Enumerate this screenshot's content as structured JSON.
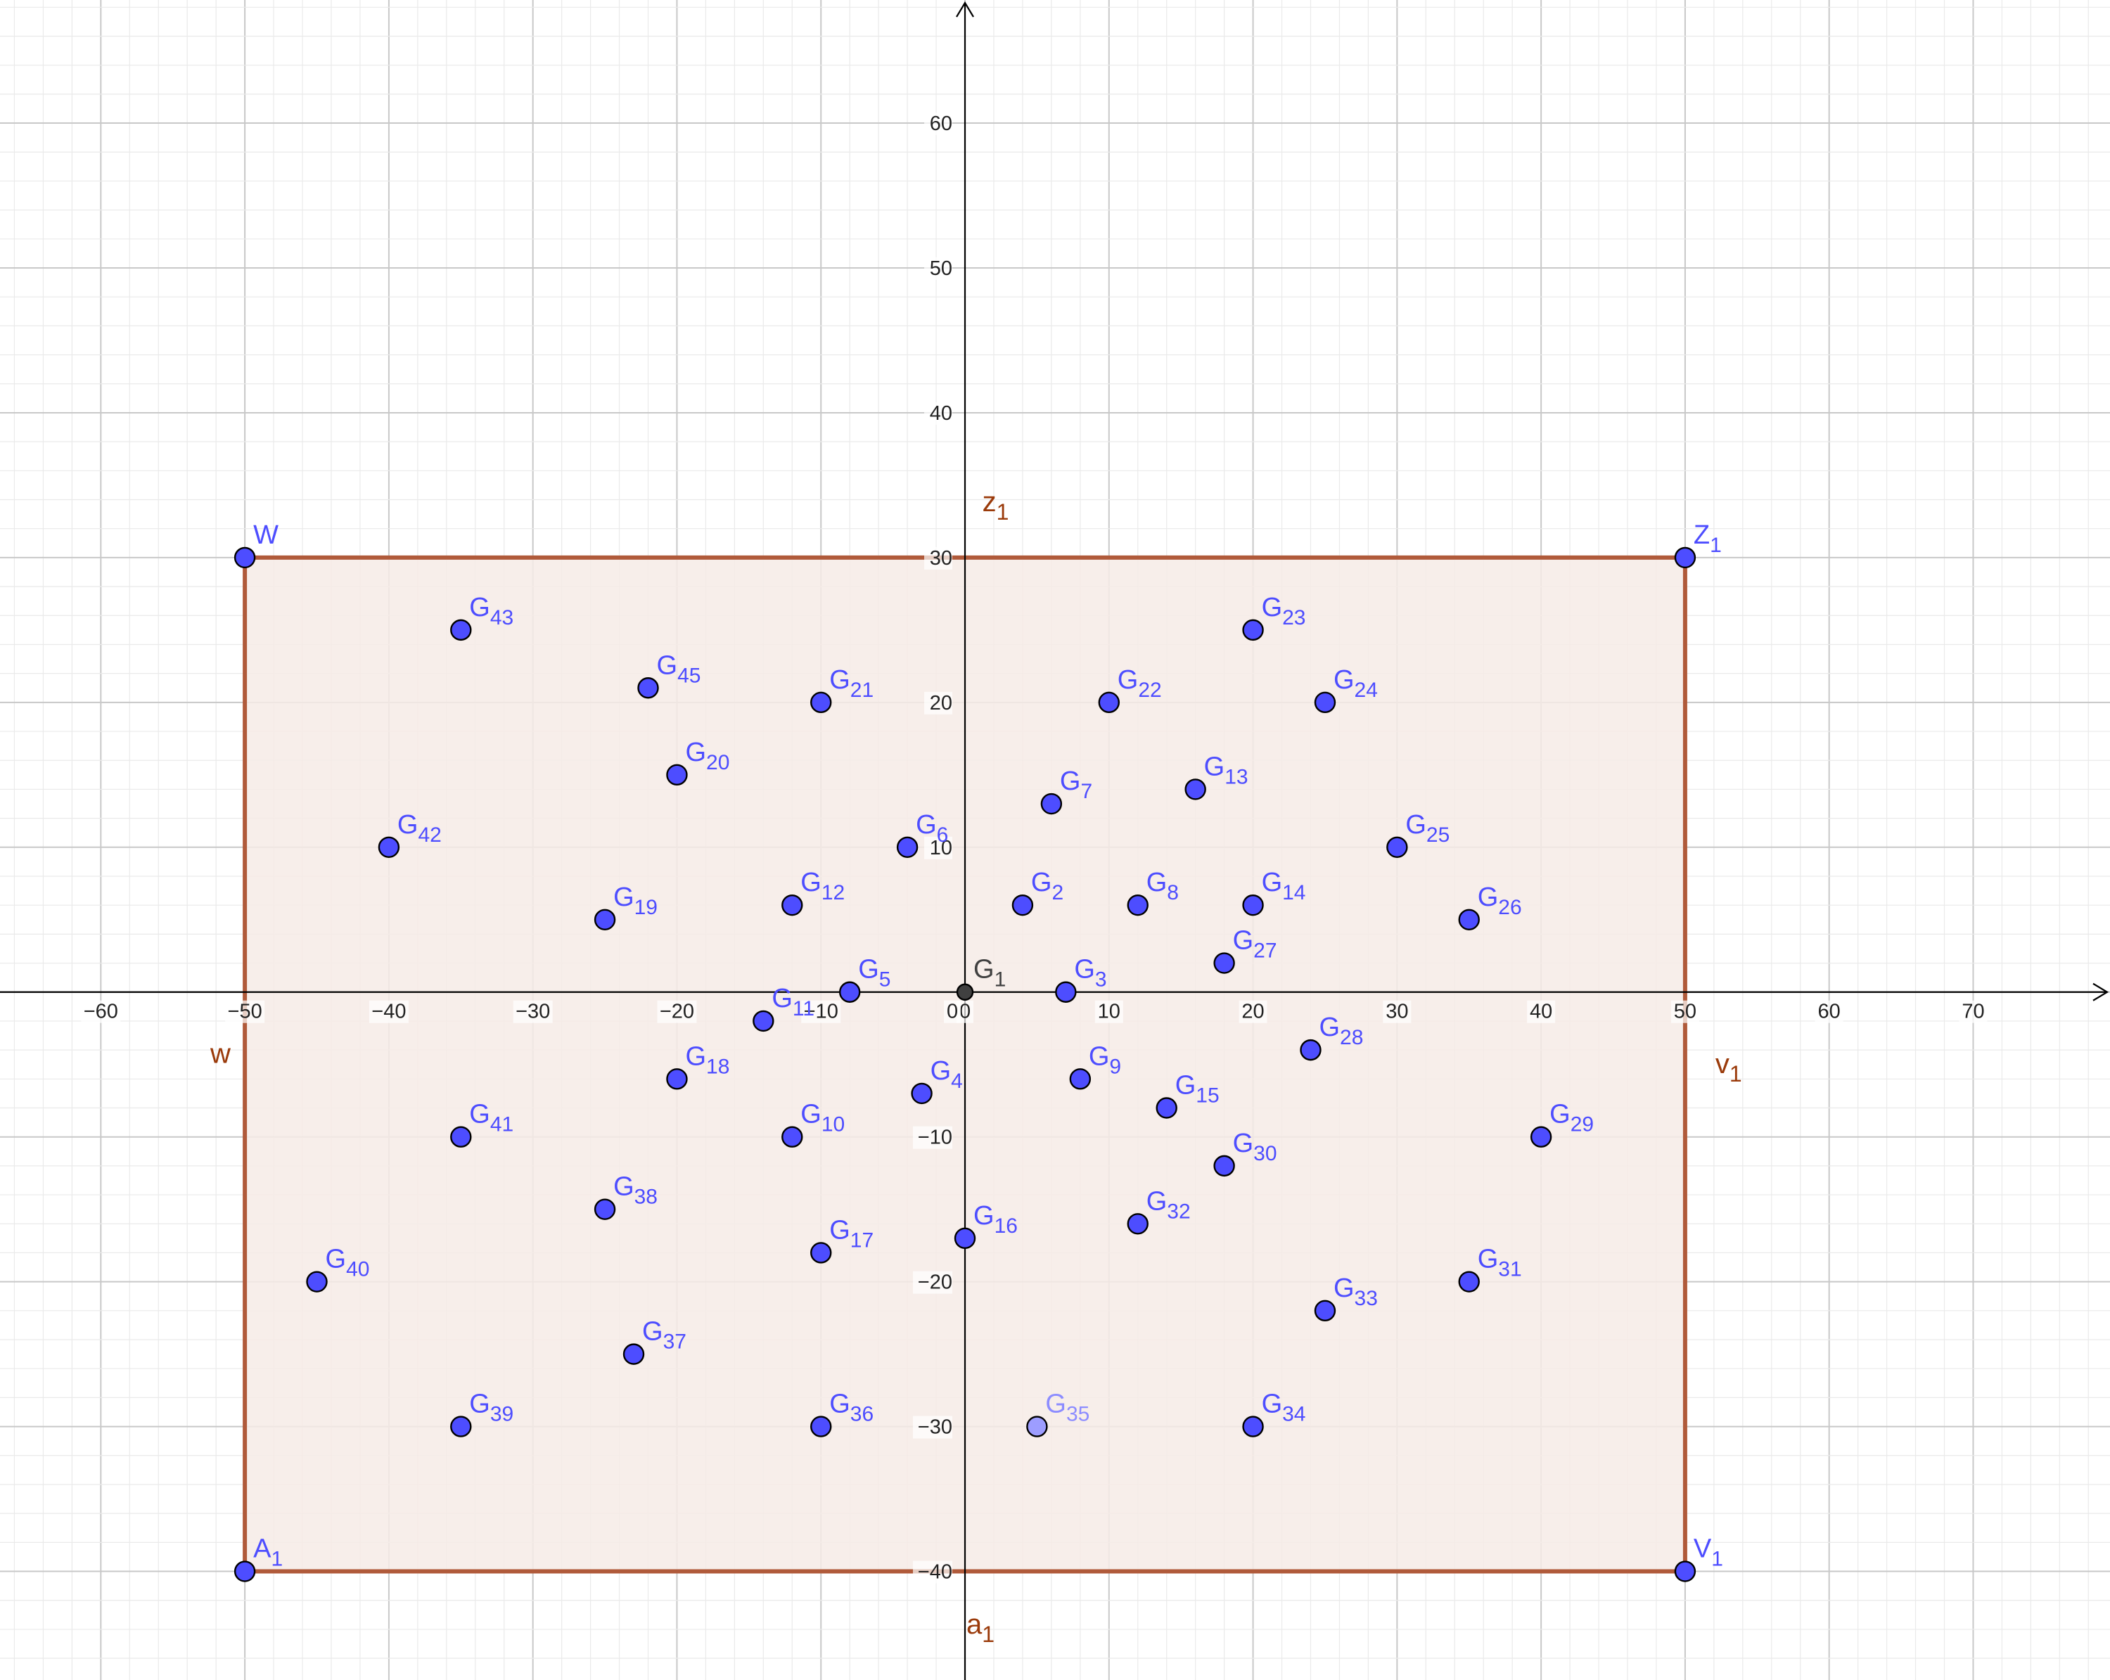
{
  "chart_data": {
    "type": "scatter",
    "x_range": [
      -67,
      79.5
    ],
    "y_range": [
      -47.5,
      68.5
    ],
    "grid": true,
    "x_ticks": [
      -60,
      -50,
      -40,
      -30,
      -20,
      -10,
      0,
      10,
      20,
      30,
      40,
      50,
      60,
      70
    ],
    "y_ticks": [
      -40,
      -30,
      -20,
      -10,
      10,
      20,
      30,
      40,
      50,
      60
    ],
    "colors": {
      "point_fill": "#4d4dff",
      "point_fill_light": "#9d9dff",
      "point_origin": "#404040",
      "label": "#4d4dff",
      "label_light": "#8c8cff",
      "label_origin": "#404040",
      "polygon_fill": "#f6ebe6",
      "polygon_edge": "#b05a3a",
      "segment_label": "#9a3a0a",
      "axis": "#000000",
      "grid_major": "#c8c8c8",
      "grid_minor": "#eaeaea"
    },
    "polygon": {
      "vertices": [
        "W",
        "Z_1",
        "V_1",
        "A_1"
      ],
      "edges": [
        {
          "name": "z",
          "sub": "1",
          "from": [
            -50,
            30
          ],
          "to": [
            50,
            30
          ],
          "label_at": [
            1.2,
            33.2
          ]
        },
        {
          "name": "v",
          "sub": "1",
          "from": [
            50,
            30
          ],
          "to": [
            50,
            -40
          ],
          "label_at": [
            52.1,
            -5.6
          ]
        },
        {
          "name": "a",
          "sub": "1",
          "from": [
            50,
            -40
          ],
          "to": [
            -50,
            -40
          ],
          "label_at": [
            0.1,
            -44.3
          ]
        },
        {
          "name": "w",
          "sub": "",
          "from": [
            -50,
            -40
          ],
          "to": [
            -50,
            30
          ],
          "label_at": [
            -52.4,
            -4.9
          ]
        }
      ]
    },
    "points": [
      {
        "name": "W",
        "sub": "",
        "x": -50,
        "y": 30
      },
      {
        "name": "Z",
        "sub": "1",
        "x": 50,
        "y": 30
      },
      {
        "name": "V",
        "sub": "1",
        "x": 50,
        "y": -40
      },
      {
        "name": "A",
        "sub": "1",
        "x": -50,
        "y": -40
      },
      {
        "name": "G",
        "sub": "1",
        "x": 0,
        "y": 0,
        "style": "origin"
      },
      {
        "name": "G",
        "sub": "2",
        "x": 4,
        "y": 6
      },
      {
        "name": "G",
        "sub": "3",
        "x": 7,
        "y": 0
      },
      {
        "name": "G",
        "sub": "4",
        "x": -3,
        "y": -7
      },
      {
        "name": "G",
        "sub": "5",
        "x": -8,
        "y": 0
      },
      {
        "name": "G",
        "sub": "6",
        "x": -4,
        "y": 10
      },
      {
        "name": "G",
        "sub": "7",
        "x": 6,
        "y": 13
      },
      {
        "name": "G",
        "sub": "8",
        "x": 12,
        "y": 6
      },
      {
        "name": "G",
        "sub": "9",
        "x": 8,
        "y": -6
      },
      {
        "name": "G",
        "sub": "10",
        "x": -12,
        "y": -10
      },
      {
        "name": "G",
        "sub": "11",
        "x": -14,
        "y": -2
      },
      {
        "name": "G",
        "sub": "12",
        "x": -12,
        "y": 6
      },
      {
        "name": "G",
        "sub": "13",
        "x": 16,
        "y": 14
      },
      {
        "name": "G",
        "sub": "14",
        "x": 20,
        "y": 6
      },
      {
        "name": "G",
        "sub": "15",
        "x": 14,
        "y": -8
      },
      {
        "name": "G",
        "sub": "16",
        "x": 0,
        "y": -17
      },
      {
        "name": "G",
        "sub": "17",
        "x": -10,
        "y": -18
      },
      {
        "name": "G",
        "sub": "18",
        "x": -20,
        "y": -6
      },
      {
        "name": "G",
        "sub": "19",
        "x": -25,
        "y": 5
      },
      {
        "name": "G",
        "sub": "20",
        "x": -20,
        "y": 15
      },
      {
        "name": "G",
        "sub": "21",
        "x": -10,
        "y": 20
      },
      {
        "name": "G",
        "sub": "22",
        "x": 10,
        "y": 20
      },
      {
        "name": "G",
        "sub": "23",
        "x": 20,
        "y": 25
      },
      {
        "name": "G",
        "sub": "24",
        "x": 25,
        "y": 20
      },
      {
        "name": "G",
        "sub": "25",
        "x": 30,
        "y": 10
      },
      {
        "name": "G",
        "sub": "26",
        "x": 35,
        "y": 5
      },
      {
        "name": "G",
        "sub": "27",
        "x": 18,
        "y": 2
      },
      {
        "name": "G",
        "sub": "28",
        "x": 24,
        "y": -4
      },
      {
        "name": "G",
        "sub": "29",
        "x": 40,
        "y": -10
      },
      {
        "name": "G",
        "sub": "30",
        "x": 18,
        "y": -12
      },
      {
        "name": "G",
        "sub": "31",
        "x": 35,
        "y": -20
      },
      {
        "name": "G",
        "sub": "32",
        "x": 12,
        "y": -16
      },
      {
        "name": "G",
        "sub": "33",
        "x": 25,
        "y": -22
      },
      {
        "name": "G",
        "sub": "34",
        "x": 20,
        "y": -30
      },
      {
        "name": "G",
        "sub": "35",
        "x": 5,
        "y": -30,
        "style": "light"
      },
      {
        "name": "G",
        "sub": "36",
        "x": -10,
        "y": -30
      },
      {
        "name": "G",
        "sub": "37",
        "x": -23,
        "y": -25
      },
      {
        "name": "G",
        "sub": "38",
        "x": -25,
        "y": -15
      },
      {
        "name": "G",
        "sub": "39",
        "x": -35,
        "y": -30
      },
      {
        "name": "G",
        "sub": "40",
        "x": -45,
        "y": -20
      },
      {
        "name": "G",
        "sub": "41",
        "x": -35,
        "y": -10
      },
      {
        "name": "G",
        "sub": "42",
        "x": -40,
        "y": 10
      },
      {
        "name": "G",
        "sub": "43",
        "x": -35,
        "y": 25
      },
      {
        "name": "G",
        "sub": "45",
        "x": -22,
        "y": 21
      }
    ]
  }
}
